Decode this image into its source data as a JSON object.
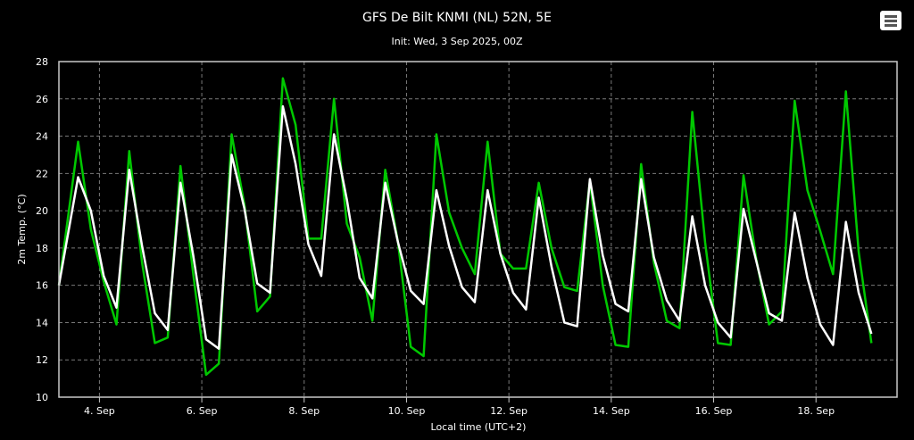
{
  "chart_data": {
    "type": "line",
    "title": "GFS De Bilt KNMI (NL) 52N, 5E",
    "subtitle": "Init: Wed, 3 Sep 2025, 00Z",
    "xlabel": "Local time (UTC+2)",
    "ylabel": "2m Temp. (°C)",
    "ylim": [
      10,
      28
    ],
    "yticks": [
      10,
      12,
      14,
      16,
      18,
      20,
      22,
      24,
      26,
      28
    ],
    "xlim": [
      "2025-09-03 05:00",
      "2025-09-19 14:00"
    ],
    "xticks": [
      {
        "x": "2025-09-04 00:00",
        "label": "4. Sep"
      },
      {
        "x": "2025-09-06 00:00",
        "label": "6. Sep"
      },
      {
        "x": "2025-09-08 00:00",
        "label": "8. Sep"
      },
      {
        "x": "2025-09-10 00:00",
        "label": "10. Sep"
      },
      {
        "x": "2025-09-12 00:00",
        "label": "12. Sep"
      },
      {
        "x": "2025-09-14 00:00",
        "label": "14. Sep"
      },
      {
        "x": "2025-09-16 00:00",
        "label": "16. Sep"
      },
      {
        "x": "2025-09-18 00:00",
        "label": "18. Sep"
      }
    ],
    "grid": true,
    "series": [
      {
        "color": "#00c800",
        "points": [
          [
            "2025-09-03 05:00",
            16.0
          ],
          [
            "2025-09-03 14:00",
            23.7
          ],
          [
            "2025-09-03 20:00",
            19.0
          ],
          [
            "2025-09-04 02:00",
            16.2
          ],
          [
            "2025-09-04 08:00",
            13.9
          ],
          [
            "2025-09-04 14:00",
            23.2
          ],
          [
            "2025-09-04 20:00",
            17.2
          ],
          [
            "2025-09-05 02:00",
            12.9
          ],
          [
            "2025-09-05 08:00",
            13.2
          ],
          [
            "2025-09-05 14:00",
            22.4
          ],
          [
            "2025-09-05 20:00",
            16.6
          ],
          [
            "2025-09-06 02:00",
            11.2
          ],
          [
            "2025-09-06 08:00",
            11.8
          ],
          [
            "2025-09-06 14:00",
            24.1
          ],
          [
            "2025-09-06 20:00",
            20.3
          ],
          [
            "2025-09-07 02:00",
            14.6
          ],
          [
            "2025-09-07 08:00",
            15.4
          ],
          [
            "2025-09-07 14:00",
            27.1
          ],
          [
            "2025-09-07 20:00",
            24.6
          ],
          [
            "2025-09-08 02:00",
            18.5
          ],
          [
            "2025-09-08 08:00",
            18.5
          ],
          [
            "2025-09-08 14:00",
            26.0
          ],
          [
            "2025-09-08 20:00",
            19.3
          ],
          [
            "2025-09-09 02:00",
            17.5
          ],
          [
            "2025-09-09 08:00",
            14.1
          ],
          [
            "2025-09-09 14:00",
            22.2
          ],
          [
            "2025-09-09 20:00",
            18.3
          ],
          [
            "2025-09-10 02:00",
            12.7
          ],
          [
            "2025-09-10 08:00",
            12.2
          ],
          [
            "2025-09-10 14:00",
            24.1
          ],
          [
            "2025-09-10 20:00",
            19.9
          ],
          [
            "2025-09-11 02:00",
            18.0
          ],
          [
            "2025-09-11 08:00",
            16.6
          ],
          [
            "2025-09-11 14:00",
            23.7
          ],
          [
            "2025-09-11 20:00",
            17.7
          ],
          [
            "2025-09-12 02:00",
            16.9
          ],
          [
            "2025-09-12 08:00",
            16.9
          ],
          [
            "2025-09-12 14:00",
            21.5
          ],
          [
            "2025-09-12 20:00",
            18.0
          ],
          [
            "2025-09-13 02:00",
            15.9
          ],
          [
            "2025-09-13 08:00",
            15.7
          ],
          [
            "2025-09-13 14:00",
            21.6
          ],
          [
            "2025-09-13 20:00",
            16.0
          ],
          [
            "2025-09-14 02:00",
            12.8
          ],
          [
            "2025-09-14 08:00",
            12.7
          ],
          [
            "2025-09-14 14:00",
            22.5
          ],
          [
            "2025-09-14 20:00",
            17.2
          ],
          [
            "2025-09-15 02:00",
            14.1
          ],
          [
            "2025-09-15 08:00",
            13.7
          ],
          [
            "2025-09-15 14:00",
            25.3
          ],
          [
            "2025-09-15 20:00",
            18.3
          ],
          [
            "2025-09-16 02:00",
            12.9
          ],
          [
            "2025-09-16 08:00",
            12.8
          ],
          [
            "2025-09-16 14:00",
            21.9
          ],
          [
            "2025-09-16 20:00",
            17.4
          ],
          [
            "2025-09-17 02:00",
            13.9
          ],
          [
            "2025-09-17 08:00",
            14.6
          ],
          [
            "2025-09-17 14:00",
            25.9
          ],
          [
            "2025-09-17 20:00",
            21.1
          ],
          [
            "2025-09-18 02:00",
            18.9
          ],
          [
            "2025-09-18 08:00",
            16.6
          ],
          [
            "2025-09-18 14:00",
            26.4
          ],
          [
            "2025-09-18 20:00",
            17.8
          ],
          [
            "2025-09-19 02:00",
            12.9
          ]
        ]
      },
      {
        "color": "#ffffff",
        "points": [
          [
            "2025-09-03 05:00",
            16.0
          ],
          [
            "2025-09-03 14:00",
            21.8
          ],
          [
            "2025-09-03 20:00",
            20.0
          ],
          [
            "2025-09-04 02:00",
            16.5
          ],
          [
            "2025-09-04 08:00",
            14.8
          ],
          [
            "2025-09-04 14:00",
            22.2
          ],
          [
            "2025-09-04 20:00",
            18.1
          ],
          [
            "2025-09-05 02:00",
            14.5
          ],
          [
            "2025-09-05 08:00",
            13.6
          ],
          [
            "2025-09-05 14:00",
            21.5
          ],
          [
            "2025-09-05 20:00",
            17.6
          ],
          [
            "2025-09-06 02:00",
            13.1
          ],
          [
            "2025-09-06 08:00",
            12.6
          ],
          [
            "2025-09-06 14:00",
            23.0
          ],
          [
            "2025-09-06 20:00",
            20.1
          ],
          [
            "2025-09-07 02:00",
            16.1
          ],
          [
            "2025-09-07 08:00",
            15.6
          ],
          [
            "2025-09-07 14:00",
            25.6
          ],
          [
            "2025-09-07 20:00",
            22.5
          ],
          [
            "2025-09-08 02:00",
            18.2
          ],
          [
            "2025-09-08 08:00",
            16.5
          ],
          [
            "2025-09-08 14:00",
            24.1
          ],
          [
            "2025-09-08 20:00",
            20.6
          ],
          [
            "2025-09-09 02:00",
            16.4
          ],
          [
            "2025-09-09 08:00",
            15.3
          ],
          [
            "2025-09-09 14:00",
            21.5
          ],
          [
            "2025-09-09 20:00",
            18.3
          ],
          [
            "2025-09-10 02:00",
            15.7
          ],
          [
            "2025-09-10 08:00",
            15.0
          ],
          [
            "2025-09-10 14:00",
            21.1
          ],
          [
            "2025-09-10 20:00",
            18.1
          ],
          [
            "2025-09-11 02:00",
            15.9
          ],
          [
            "2025-09-11 08:00",
            15.1
          ],
          [
            "2025-09-11 14:00",
            21.1
          ],
          [
            "2025-09-11 20:00",
            17.7
          ],
          [
            "2025-09-12 02:00",
            15.6
          ],
          [
            "2025-09-12 08:00",
            14.7
          ],
          [
            "2025-09-12 14:00",
            20.7
          ],
          [
            "2025-09-12 20:00",
            17.0
          ],
          [
            "2025-09-13 02:00",
            14.0
          ],
          [
            "2025-09-13 08:00",
            13.8
          ],
          [
            "2025-09-13 14:00",
            21.7
          ],
          [
            "2025-09-13 20:00",
            17.6
          ],
          [
            "2025-09-14 02:00",
            15.0
          ],
          [
            "2025-09-14 08:00",
            14.6
          ],
          [
            "2025-09-14 14:00",
            21.7
          ],
          [
            "2025-09-14 20:00",
            17.5
          ],
          [
            "2025-09-15 02:00",
            15.2
          ],
          [
            "2025-09-15 08:00",
            14.1
          ],
          [
            "2025-09-15 14:00",
            19.7
          ],
          [
            "2025-09-15 20:00",
            16.0
          ],
          [
            "2025-09-16 02:00",
            14.0
          ],
          [
            "2025-09-16 08:00",
            13.2
          ],
          [
            "2025-09-16 14:00",
            20.1
          ],
          [
            "2025-09-16 20:00",
            17.3
          ],
          [
            "2025-09-17 02:00",
            14.5
          ],
          [
            "2025-09-17 08:00",
            14.1
          ],
          [
            "2025-09-17 14:00",
            19.9
          ],
          [
            "2025-09-17 20:00",
            16.4
          ],
          [
            "2025-09-18 02:00",
            13.9
          ],
          [
            "2025-09-18 08:00",
            12.8
          ],
          [
            "2025-09-18 14:00",
            19.4
          ],
          [
            "2025-09-18 20:00",
            15.6
          ],
          [
            "2025-09-19 02:00",
            13.4
          ]
        ]
      }
    ]
  },
  "menu": {
    "icon": "hamburger-menu-icon"
  }
}
